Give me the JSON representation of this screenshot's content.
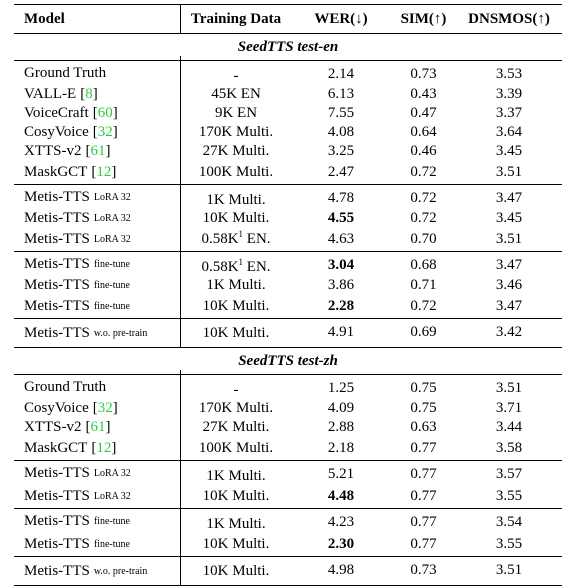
{
  "table": {
    "header": [
      "Model",
      "Training Data",
      "WER(↓)",
      "SIM(↑)",
      "DNSMOS(↑)"
    ],
    "sections": [
      {
        "title": "SeedTTS test-en",
        "groups": [
          [
            {
              "model": "Ground Truth",
              "data": "-",
              "wer": "2.14",
              "sim": "0.73",
              "dnsmos": "3.53"
            },
            {
              "model": "VALL-E",
              "cite": [
                "[",
                "8",
                "]"
              ],
              "data": "45K EN",
              "wer": "6.13",
              "sim": "0.43",
              "dnsmos": "3.39"
            },
            {
              "model": "VoiceCraft",
              "cite": [
                "[",
                "60",
                "]"
              ],
              "data": "9K EN",
              "wer": "7.55",
              "sim": "0.47",
              "dnsmos": "3.37"
            },
            {
              "model": "CosyVoice",
              "cite": [
                "[",
                "32",
                "]"
              ],
              "data": "170K Multi.",
              "wer": "4.08",
              "sim": "0.64",
              "dnsmos": "3.64"
            },
            {
              "model": "XTTS-v2",
              "cite": [
                "[",
                "61",
                "]"
              ],
              "data": "27K Multi.",
              "wer": "3.25",
              "sim": "0.46",
              "dnsmos": "3.45"
            },
            {
              "model": "MaskGCT",
              "cite": [
                "[",
                "12",
                "]"
              ],
              "data": "100K Multi.",
              "wer": "2.47",
              "sim": "0.72",
              "dnsmos": "3.51"
            }
          ],
          [
            {
              "model": "Metis-TTS",
              "tag": "LoRA 32",
              "data": "1K Multi.",
              "wer": "4.78",
              "sim": "0.72",
              "dnsmos": "3.47"
            },
            {
              "model": "Metis-TTS",
              "tag": "LoRA 32",
              "data": "10K Multi.",
              "wer": "4.55",
              "sim": "0.72",
              "dnsmos": "3.45",
              "bold": "wer"
            },
            {
              "model": "Metis-TTS",
              "tag": "LoRA 32",
              "data": "0.58K",
              "sup": "1",
              "data_after": " EN.",
              "wer": "4.63",
              "sim": "0.70",
              "dnsmos": "3.51"
            }
          ],
          [
            {
              "model": "Metis-TTS",
              "tag": "fine-tune",
              "data": "0.58K",
              "sup": "1",
              "data_after": " EN.",
              "wer": "3.04",
              "sim": "0.68",
              "dnsmos": "3.47",
              "bold": "wer"
            },
            {
              "model": "Metis-TTS",
              "tag": "fine-tune",
              "data": "1K Multi.",
              "wer": "3.86",
              "sim": "0.71",
              "dnsmos": "3.46"
            },
            {
              "model": "Metis-TTS",
              "tag": "fine-tune",
              "data": "10K Multi.",
              "wer": "2.28",
              "sim": "0.72",
              "dnsmos": "3.47",
              "bold": "wer"
            }
          ],
          [
            {
              "model": "Metis-TTS",
              "tag": "w.o. pre-train",
              "data": "10K Multi.",
              "wer": "4.91",
              "sim": "0.69",
              "dnsmos": "3.42"
            }
          ]
        ]
      },
      {
        "title": "SeedTTS test-zh",
        "groups": [
          [
            {
              "model": "Ground Truth",
              "data": "-",
              "wer": "1.25",
              "sim": "0.75",
              "dnsmos": "3.51"
            },
            {
              "model": "CosyVoice",
              "cite": [
                "[",
                "32",
                "]"
              ],
              "data": "170K Multi.",
              "wer": "4.09",
              "sim": "0.75",
              "dnsmos": "3.71"
            },
            {
              "model": "XTTS-v2",
              "cite": [
                "[",
                "61",
                "]"
              ],
              "data": "27K Multi.",
              "wer": "2.88",
              "sim": "0.63",
              "dnsmos": "3.44"
            },
            {
              "model": "MaskGCT",
              "cite": [
                "[",
                "12",
                "]"
              ],
              "data": "100K Multi.",
              "wer": "2.18",
              "sim": "0.77",
              "dnsmos": "3.58"
            }
          ],
          [
            {
              "model": "Metis-TTS",
              "tag": "LoRA 32",
              "data": "1K Multi.",
              "wer": "5.21",
              "sim": "0.77",
              "dnsmos": "3.57"
            },
            {
              "model": "Metis-TTS",
              "tag": "LoRA 32",
              "data": "10K Multi.",
              "wer": "4.48",
              "sim": "0.77",
              "dnsmos": "3.55",
              "bold": "wer"
            }
          ],
          [
            {
              "model": "Metis-TTS",
              "tag": "fine-tune",
              "data": "1K Multi.",
              "wer": "4.23",
              "sim": "0.77",
              "dnsmos": "3.54"
            },
            {
              "model": "Metis-TTS",
              "tag": "fine-tune",
              "data": "10K Multi.",
              "wer": "2.30",
              "sim": "0.77",
              "dnsmos": "3.55",
              "bold": "wer"
            }
          ],
          [
            {
              "model": "Metis-TTS",
              "tag": "w.o. pre-train",
              "data": "10K Multi.",
              "wer": "4.98",
              "sim": "0.73",
              "dnsmos": "3.51"
            }
          ]
        ]
      }
    ]
  }
}
